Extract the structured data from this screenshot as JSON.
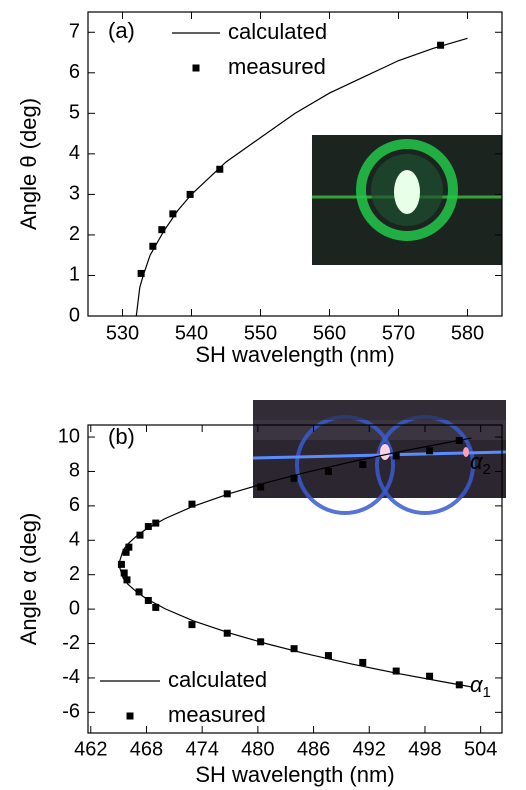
{
  "chart_data": [
    {
      "type": "line",
      "label": "(a)",
      "x_label": "SH wavelength (nm)",
      "y_label": "Angle θ (deg)",
      "xlim": [
        525,
        585
      ],
      "xticks": [
        530,
        540,
        550,
        560,
        570,
        580
      ],
      "ylim": [
        0,
        7.5
      ],
      "yticks": [
        0,
        1,
        2,
        3,
        4,
        5,
        6,
        7
      ],
      "series": [
        {
          "name": "calculated",
          "color": "#000000",
          "style": "line",
          "x": [
            532,
            532.5,
            533,
            534,
            536,
            538,
            540,
            545,
            550,
            555,
            560,
            565,
            570,
            575,
            580
          ],
          "values": [
            0,
            0.7,
            1.0,
            1.5,
            2.1,
            2.6,
            3.0,
            3.8,
            4.4,
            5.0,
            5.5,
            5.9,
            6.3,
            6.6,
            6.85
          ]
        },
        {
          "name": "measured",
          "color": "#000000",
          "style": "markers",
          "x": [
            532.7,
            534.4,
            535.7,
            537.3,
            539.8,
            544.1,
            576.1
          ],
          "values": [
            1.05,
            1.72,
            2.13,
            2.52,
            3.0,
            3.62,
            6.68
          ]
        }
      ]
    },
    {
      "type": "line",
      "label": "(b)",
      "x_label": "SH wavelength (nm)",
      "y_label": "Angle α (deg)",
      "xlim": [
        461.7,
        506.3
      ],
      "xticks": [
        462,
        468,
        474,
        480,
        486,
        492,
        498,
        504
      ],
      "ylim": [
        -7.2,
        10.7
      ],
      "yticks": [
        -6,
        -4,
        -2,
        0,
        2,
        4,
        6,
        8,
        10
      ],
      "curve_labels": [
        {
          "symbol": "α",
          "sub": "2"
        },
        {
          "symbol": "α",
          "sub": "1"
        }
      ],
      "series": [
        {
          "name": "calculated",
          "color": "#000000",
          "style": "line",
          "x": [
            465,
            465.5,
            466,
            467,
            468,
            470,
            473,
            477,
            481,
            485,
            490,
            495,
            500,
            503,
            null,
            465,
            465.5,
            466,
            467,
            468,
            470,
            473,
            477,
            481,
            485,
            490,
            495,
            500,
            503
          ],
          "values": [
            2.6,
            3.44,
            3.79,
            4.28,
            4.66,
            5.26,
            5.97,
            6.72,
            7.36,
            7.92,
            8.55,
            9.12,
            9.64,
            9.94,
            null,
            2.6,
            1.78,
            1.45,
            0.97,
            0.6,
            0.02,
            -0.67,
            -1.4,
            -2.02,
            -2.57,
            -3.18,
            -3.73,
            -4.23,
            -4.52
          ]
        },
        {
          "name": "measured",
          "color": "#000000",
          "style": "markers",
          "x": [
            465.3,
            465.8,
            466.1,
            467.3,
            468.2,
            469.0,
            472.9,
            476.7,
            480.3,
            483.9,
            487.6,
            491.3,
            494.9,
            498.5,
            501.7,
            465.6,
            465.9,
            467.2,
            468.2,
            469.0,
            472.9,
            476.7,
            480.3,
            483.9,
            487.6,
            491.3,
            494.9,
            498.5,
            501.7
          ],
          "values": [
            2.6,
            3.3,
            3.6,
            4.3,
            4.8,
            5.0,
            6.1,
            6.7,
            7.1,
            7.6,
            8.0,
            8.4,
            8.9,
            9.2,
            9.8,
            2.1,
            1.7,
            1.0,
            0.5,
            0.1,
            -0.9,
            -1.4,
            -1.9,
            -2.3,
            -2.7,
            -3.1,
            -3.6,
            -3.9,
            -4.4
          ]
        }
      ]
    }
  ]
}
